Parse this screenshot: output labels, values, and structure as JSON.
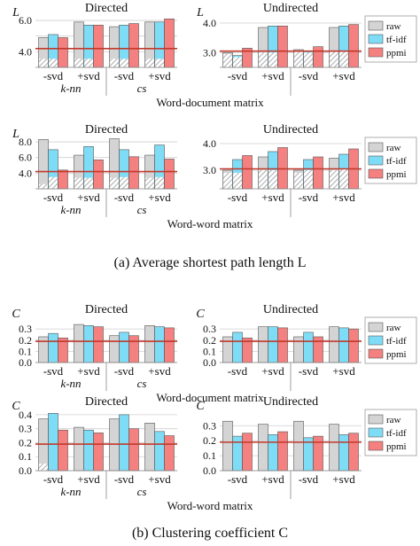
{
  "colors": {
    "raw": "#d4d4d4",
    "tfidf": "#7fdcf6",
    "ppmi": "#f48080",
    "baseline": "#c0392b",
    "hatch": "#9a9a9a"
  },
  "legend": [
    "raw",
    "tf-idf",
    "ppmi"
  ],
  "captions": {
    "a": "(a) Average shortest path length L",
    "b": "(b) Clustering coefficient C"
  },
  "chart_data": [
    {
      "type": "bar",
      "id": "L-wd-dir",
      "title": "Directed",
      "ylabel": "L",
      "categories": [
        "-svd",
        "+svd",
        "-svd",
        "+svd"
      ],
      "groups": [
        "k-nn",
        "cs"
      ],
      "group_label": "Word-document matrix",
      "ylim": [
        3,
        6.4
      ],
      "yticks": [
        4.0,
        5.0,
        6.0
      ],
      "ytick_labels": [
        "4.0",
        "",
        "6.0"
      ],
      "baseline": 4.2,
      "series": [
        {
          "name": "raw",
          "values": [
            4.9,
            5.9,
            5.6,
            5.9
          ],
          "hatched": [
            3.55,
            3.55,
            3.55,
            3.55
          ]
        },
        {
          "name": "tf-idf",
          "values": [
            5.1,
            5.7,
            5.7,
            5.9
          ],
          "hatched": [
            3.55,
            3.55,
            3.55,
            3.55
          ]
        },
        {
          "name": "ppmi",
          "values": [
            4.9,
            5.7,
            5.8,
            6.1
          ],
          "hatched": [
            null,
            null,
            null,
            null
          ]
        }
      ]
    },
    {
      "type": "bar",
      "id": "L-wd-und",
      "title": "Undirected",
      "ylabel": "L",
      "categories": [
        "-svd",
        "+svd",
        "-svd",
        "+svd"
      ],
      "groups": [],
      "group_label": "",
      "ylim": [
        2.5,
        4.3
      ],
      "yticks": [
        3.0,
        4.0
      ],
      "ytick_labels": [
        "3.0",
        "4.0"
      ],
      "baseline": 3.05,
      "series": [
        {
          "name": "raw",
          "values": [
            3.0,
            3.85,
            3.1,
            3.85
          ],
          "hatched": [
            2.95,
            3.0,
            3.05,
            3.05
          ]
        },
        {
          "name": "tf-idf",
          "values": [
            2.9,
            3.9,
            3.05,
            3.9
          ],
          "hatched": [
            2.85,
            3.0,
            3.0,
            3.05
          ]
        },
        {
          "name": "ppmi",
          "values": [
            3.15,
            3.9,
            3.2,
            3.95
          ],
          "hatched": [
            null,
            null,
            null,
            null
          ]
        }
      ]
    },
    {
      "type": "bar",
      "id": "L-ww-dir",
      "title": "Directed",
      "ylabel": "L",
      "categories": [
        "-svd",
        "+svd",
        "-svd",
        "+svd"
      ],
      "groups": [
        "k-nn",
        "cs"
      ],
      "group_label": "Word-word matrix",
      "ylim": [
        2.0,
        8.8
      ],
      "yticks": [
        4.0,
        6.0,
        8.0
      ],
      "ytick_labels": [
        "4.0",
        "6.0",
        "8.0"
      ],
      "baseline": 4.2,
      "series": [
        {
          "name": "raw",
          "values": [
            8.3,
            6.3,
            8.4,
            6.3
          ],
          "hatched": [
            2.6,
            3.4,
            3.4,
            3.4
          ]
        },
        {
          "name": "tf-idf",
          "values": [
            7.0,
            7.4,
            7.0,
            7.6
          ],
          "hatched": [
            3.5,
            3.4,
            3.5,
            3.5
          ]
        },
        {
          "name": "ppmi",
          "values": [
            4.4,
            5.7,
            6.1,
            5.8
          ],
          "hatched": [
            null,
            null,
            null,
            null
          ]
        }
      ]
    },
    {
      "type": "bar",
      "id": "L-ww-und",
      "title": "Undirected",
      "ylabel": "",
      "categories": [
        "-svd",
        "+svd",
        "-svd",
        "+svd"
      ],
      "groups": [],
      "group_label": "",
      "ylim": [
        2.3,
        4.3
      ],
      "yticks": [
        3.0,
        4.0
      ],
      "ytick_labels": [
        "3.0",
        "4.0"
      ],
      "baseline": 3.05,
      "series": [
        {
          "name": "raw",
          "values": [
            3.0,
            3.5,
            3.0,
            3.45
          ],
          "hatched": [
            2.9,
            3.0,
            2.9,
            3.0
          ]
        },
        {
          "name": "tf-idf",
          "values": [
            3.4,
            3.7,
            3.4,
            3.6
          ],
          "hatched": [
            2.9,
            3.0,
            3.0,
            3.05
          ]
        },
        {
          "name": "ppmi",
          "values": [
            3.55,
            3.85,
            3.5,
            3.8
          ],
          "hatched": [
            null,
            null,
            null,
            null
          ]
        }
      ]
    },
    {
      "type": "bar",
      "id": "C-wd-dir",
      "title": "Directed",
      "ylabel": "C",
      "categories": [
        "-svd",
        "+svd",
        "-svd",
        "+svd"
      ],
      "groups": [
        "k-nn",
        "cs"
      ],
      "group_label": "Word-document matrix",
      "ylim": [
        0,
        0.42
      ],
      "yticks": [
        0.0,
        0.1,
        0.2,
        0.3
      ],
      "ytick_labels": [
        "0.0",
        "0.1",
        "0.2",
        "0.3"
      ],
      "baseline": 0.19,
      "series": [
        {
          "name": "raw",
          "values": [
            0.23,
            0.34,
            0.24,
            0.33
          ],
          "hatched": [
            null,
            null,
            null,
            null
          ]
        },
        {
          "name": "tf-idf",
          "values": [
            0.26,
            0.33,
            0.27,
            0.32
          ],
          "hatched": [
            null,
            null,
            null,
            null
          ]
        },
        {
          "name": "ppmi",
          "values": [
            0.22,
            0.32,
            0.24,
            0.31
          ],
          "hatched": [
            null,
            null,
            null,
            null
          ]
        }
      ]
    },
    {
      "type": "bar",
      "id": "C-wd-und",
      "title": "Undirected",
      "ylabel": "C",
      "categories": [
        "-svd",
        "+svd",
        "-svd",
        "+svd"
      ],
      "groups": [],
      "group_label": "",
      "ylim": [
        0,
        0.42
      ],
      "yticks": [
        0.0,
        0.1,
        0.2,
        0.3
      ],
      "ytick_labels": [
        "0.0",
        "0.1",
        "0.2",
        "0.3"
      ],
      "baseline": 0.19,
      "series": [
        {
          "name": "raw",
          "values": [
            0.23,
            0.32,
            0.23,
            0.32
          ],
          "hatched": [
            null,
            null,
            null,
            null
          ]
        },
        {
          "name": "tf-idf",
          "values": [
            0.27,
            0.32,
            0.27,
            0.31
          ],
          "hatched": [
            null,
            null,
            null,
            null
          ]
        },
        {
          "name": "ppmi",
          "values": [
            0.22,
            0.31,
            0.23,
            0.3
          ],
          "hatched": [
            null,
            null,
            null,
            null
          ]
        }
      ]
    },
    {
      "type": "bar",
      "id": "C-ww-dir",
      "title": "Directed",
      "ylabel": "C",
      "categories": [
        "-svd",
        "+svd",
        "-svd",
        "+svd"
      ],
      "groups": [
        "k-nn",
        "cs"
      ],
      "group_label": "Word-word matrix",
      "ylim": [
        0,
        0.45
      ],
      "yticks": [
        0.0,
        0.1,
        0.2,
        0.3,
        0.4
      ],
      "ytick_labels": [
        "0.0",
        "0.1",
        "0.2",
        "0.3",
        "0.4"
      ],
      "baseline": 0.19,
      "series": [
        {
          "name": "raw",
          "values": [
            0.37,
            0.31,
            0.37,
            0.34
          ],
          "hatched": [
            0.05,
            null,
            null,
            null
          ]
        },
        {
          "name": "tf-idf",
          "values": [
            0.41,
            0.29,
            0.4,
            0.28
          ],
          "hatched": [
            null,
            null,
            null,
            null
          ]
        },
        {
          "name": "ppmi",
          "values": [
            0.29,
            0.27,
            0.3,
            0.25
          ],
          "hatched": [
            null,
            null,
            null,
            null
          ]
        }
      ]
    },
    {
      "type": "bar",
      "id": "C-ww-und",
      "title": "Undirected",
      "ylabel": "C",
      "categories": [
        "-svd",
        "+svd",
        "-svd",
        "+svd"
      ],
      "groups": [],
      "group_label": "",
      "ylim": [
        0,
        0.42
      ],
      "yticks": [
        0.0,
        0.1,
        0.2,
        0.3
      ],
      "ytick_labels": [
        "0.0",
        "0.1",
        "0.2",
        "0.3"
      ],
      "baseline": 0.19,
      "series": [
        {
          "name": "raw",
          "values": [
            0.33,
            0.31,
            0.33,
            0.31
          ],
          "hatched": [
            null,
            null,
            null,
            null
          ]
        },
        {
          "name": "tf-idf",
          "values": [
            0.23,
            0.24,
            0.22,
            0.24
          ],
          "hatched": [
            null,
            null,
            null,
            null
          ]
        },
        {
          "name": "ppmi",
          "values": [
            0.25,
            0.26,
            0.23,
            0.25
          ],
          "hatched": [
            null,
            null,
            null,
            null
          ]
        }
      ]
    }
  ]
}
